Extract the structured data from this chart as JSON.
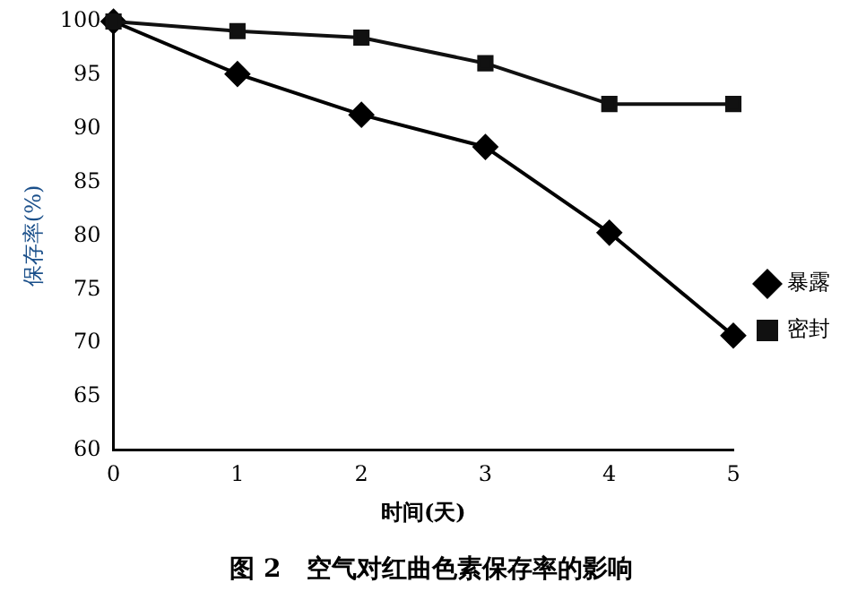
{
  "chart_data": {
    "type": "line",
    "title": "图 2　空气对红曲色素保存率的影响",
    "xlabel": "时间(天)",
    "ylabel": "保存率(%)",
    "x": [
      0,
      1,
      2,
      3,
      4,
      5
    ],
    "series": [
      {
        "name": "暴露",
        "color": "#000000",
        "marker": "diamond",
        "values": [
          100,
          95.1,
          91.3,
          88.3,
          80.3,
          70.7
        ]
      },
      {
        "name": "密封",
        "color": "#111111",
        "marker": "square",
        "values": [
          100,
          99.1,
          98.5,
          96.1,
          92.3,
          92.3
        ]
      }
    ],
    "xlim": [
      0,
      5
    ],
    "xticks": [
      0,
      1,
      2,
      3,
      4,
      5
    ],
    "ylim": [
      60,
      100
    ],
    "yticks": [
      60,
      65,
      70,
      75,
      80,
      85,
      90,
      95,
      100
    ],
    "grid": false,
    "legend": "right",
    "line_style": "solid"
  }
}
